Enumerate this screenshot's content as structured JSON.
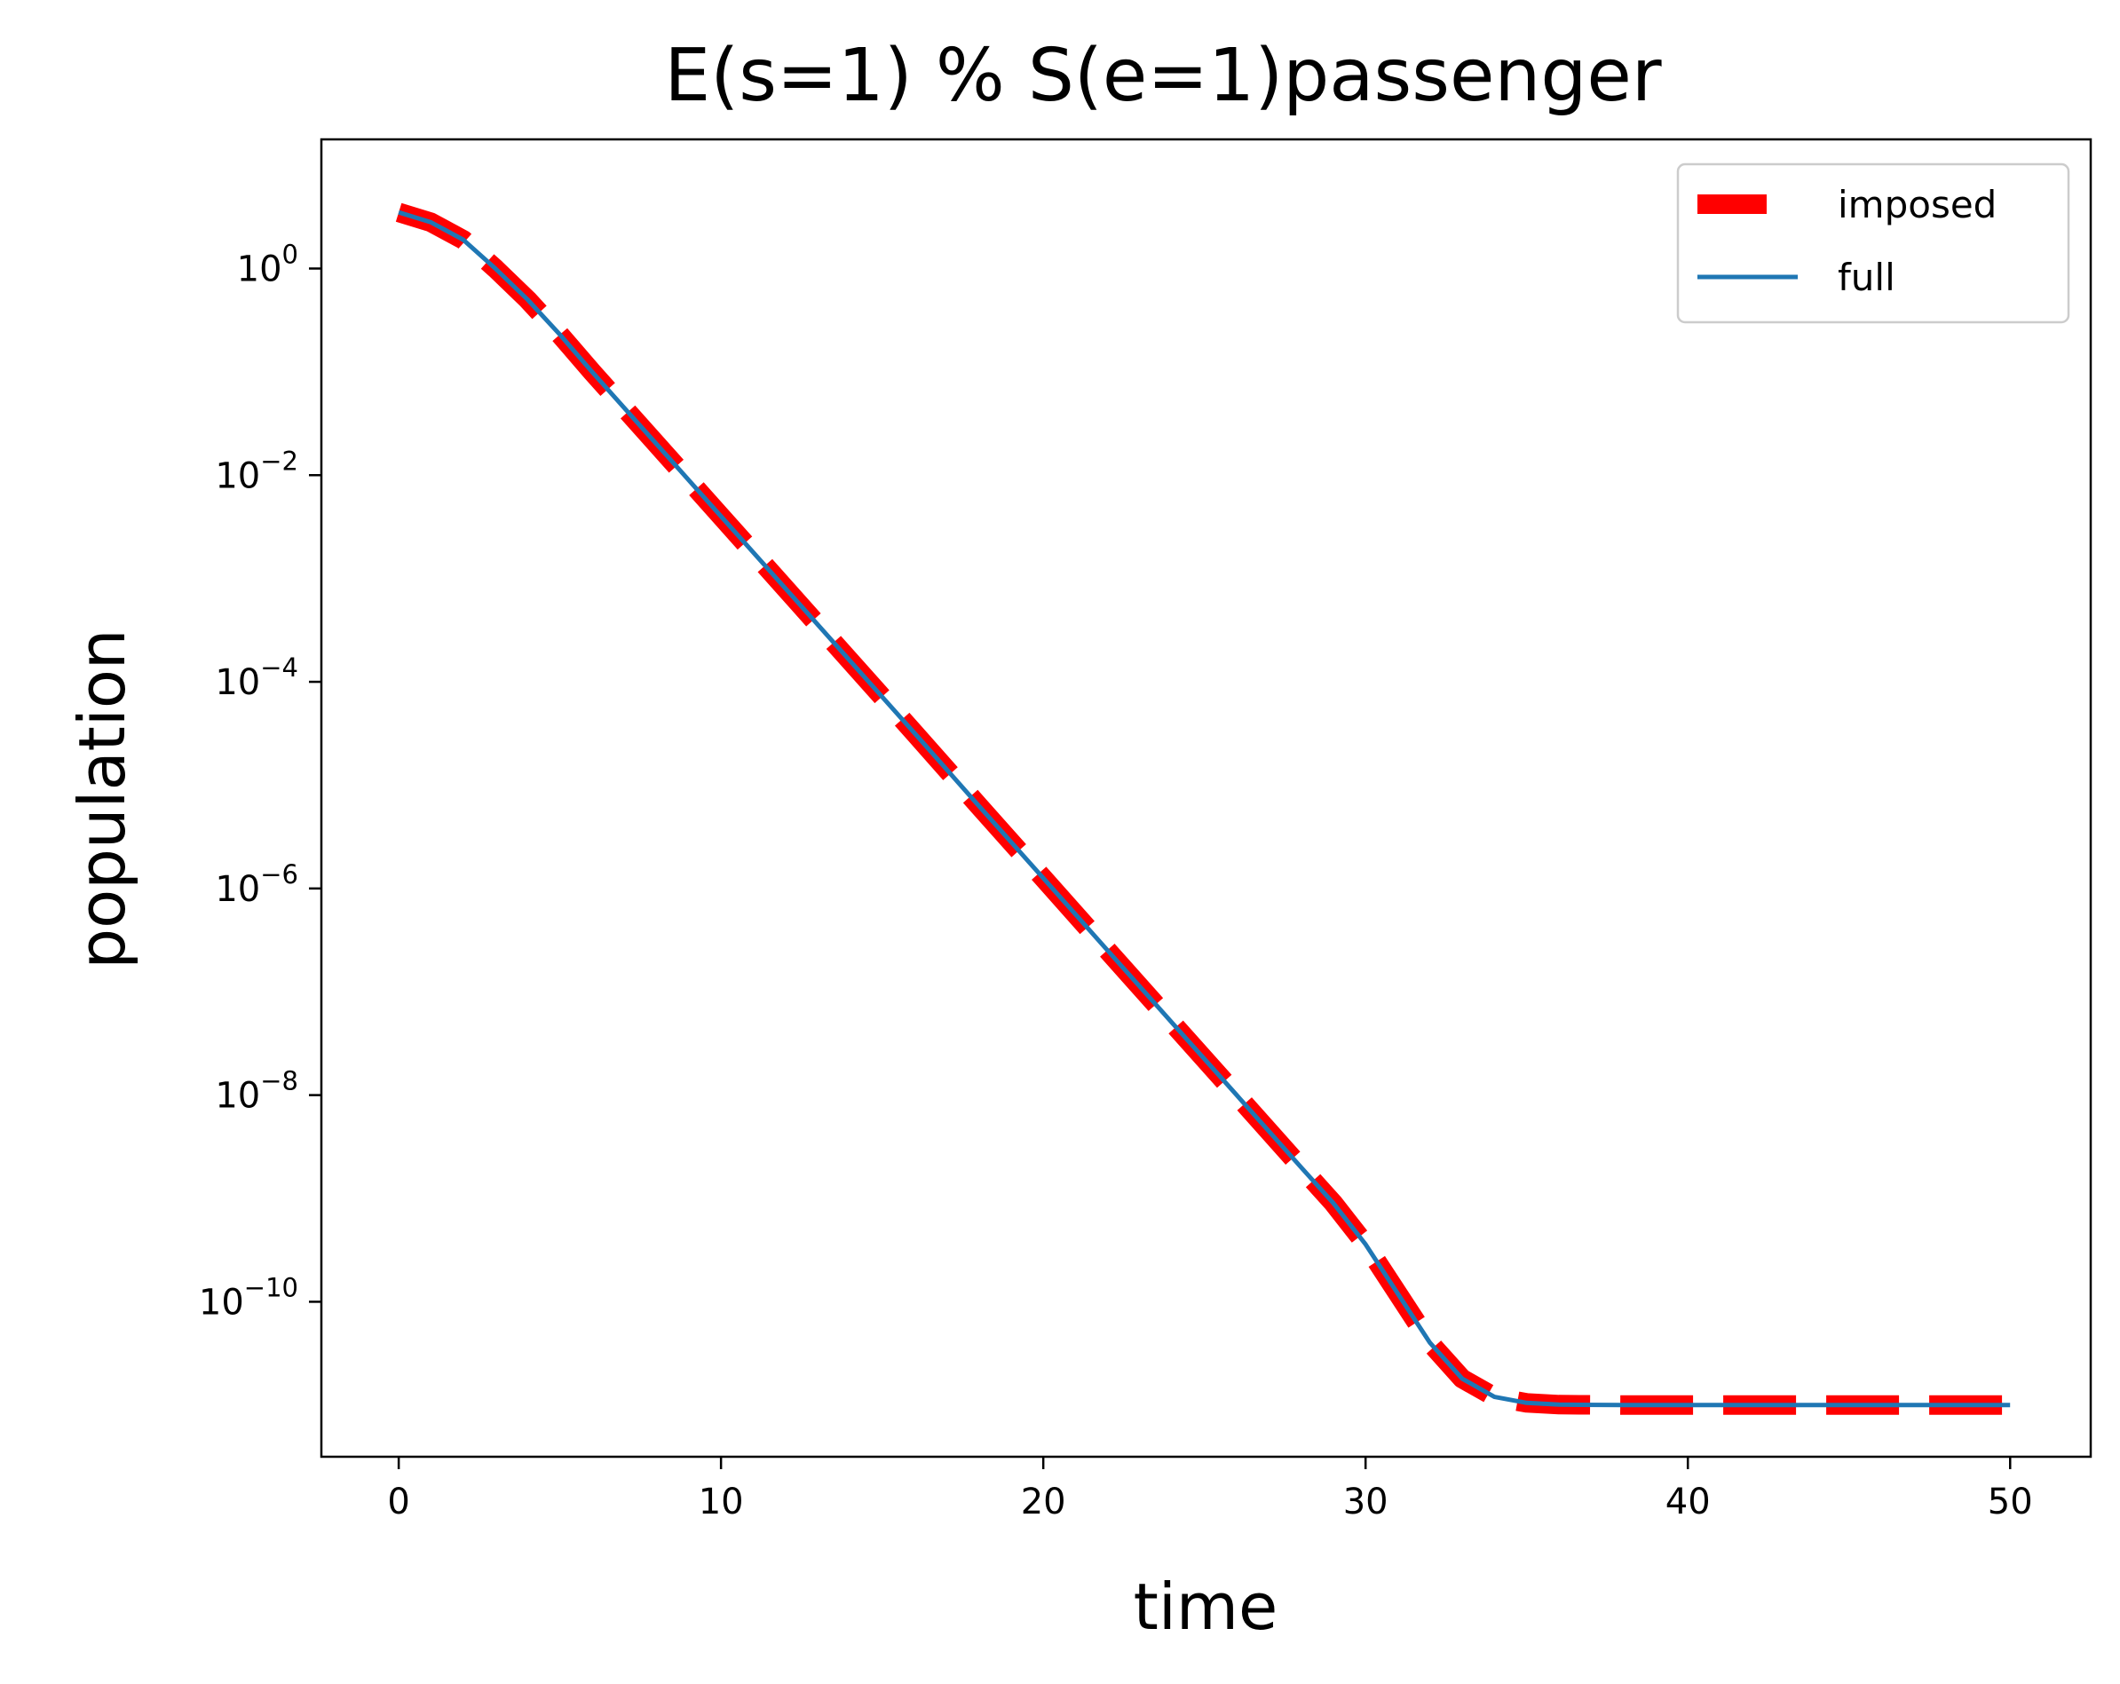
{
  "chart_data": {
    "type": "line",
    "title": "E(s=1) % S(e=1)passenger",
    "xlabel": "time",
    "ylabel": "population",
    "yscale": "log",
    "xlim": [
      -2.4,
      52.5
    ],
    "ylim_log10": [
      -11.5,
      1.25
    ],
    "x_ticks": [
      0,
      10,
      20,
      30,
      40,
      50
    ],
    "x_tick_labels": [
      "0",
      "10",
      "20",
      "30",
      "40",
      "50"
    ],
    "y_ticks_log10": [
      0,
      -2,
      -4,
      -6,
      -8,
      -10
    ],
    "y_tick_labels": [
      {
        "base": "10",
        "exp": "0"
      },
      {
        "base": "10",
        "exp": "−2"
      },
      {
        "base": "10",
        "exp": "−4"
      },
      {
        "base": "10",
        "exp": "−6"
      },
      {
        "base": "10",
        "exp": "−8"
      },
      {
        "base": "10",
        "exp": "−10"
      }
    ],
    "grid": false,
    "legend_position": "top-right",
    "series": [
      {
        "name": "imposed",
        "style": "dashed",
        "color": "#ff0000",
        "x": [
          0,
          1,
          2,
          3,
          4,
          5,
          6,
          8,
          10,
          12,
          14,
          16,
          18,
          20,
          22,
          24,
          26,
          28,
          29,
          30,
          31,
          32,
          33,
          34,
          35,
          36,
          38,
          40,
          45,
          50
        ],
        "y": [
          3.5,
          2.8,
          1.9,
          1.0,
          0.5,
          0.23,
          0.1,
          0.02,
          0.004,
          0.0008,
          0.00016,
          3.2e-05,
          6.3e-06,
          1.26e-06,
          2.5e-07,
          5e-08,
          1e-08,
          2e-09,
          9e-10,
          3.6e-10,
          1.2e-10,
          4e-11,
          1.8e-11,
          1.2e-11,
          1.05e-11,
          1.01e-11,
          1e-11,
          1e-11,
          1e-11,
          1e-11
        ]
      },
      {
        "name": "full",
        "style": "solid",
        "color": "#1f77b4",
        "x": [
          0,
          1,
          2,
          3,
          4,
          5,
          6,
          8,
          10,
          12,
          14,
          16,
          18,
          20,
          22,
          24,
          26,
          28,
          29,
          30,
          31,
          32,
          33,
          34,
          35,
          36,
          38,
          40,
          45,
          50
        ],
        "y": [
          3.5,
          2.8,
          1.9,
          1.0,
          0.5,
          0.23,
          0.1,
          0.02,
          0.004,
          0.0008,
          0.00016,
          3.2e-05,
          6.3e-06,
          1.26e-06,
          2.5e-07,
          5e-08,
          1e-08,
          2e-09,
          9e-10,
          3.6e-10,
          1.2e-10,
          4e-11,
          1.8e-11,
          1.2e-11,
          1.05e-11,
          1.01e-11,
          1e-11,
          1e-11,
          1e-11,
          1e-11
        ]
      }
    ]
  }
}
